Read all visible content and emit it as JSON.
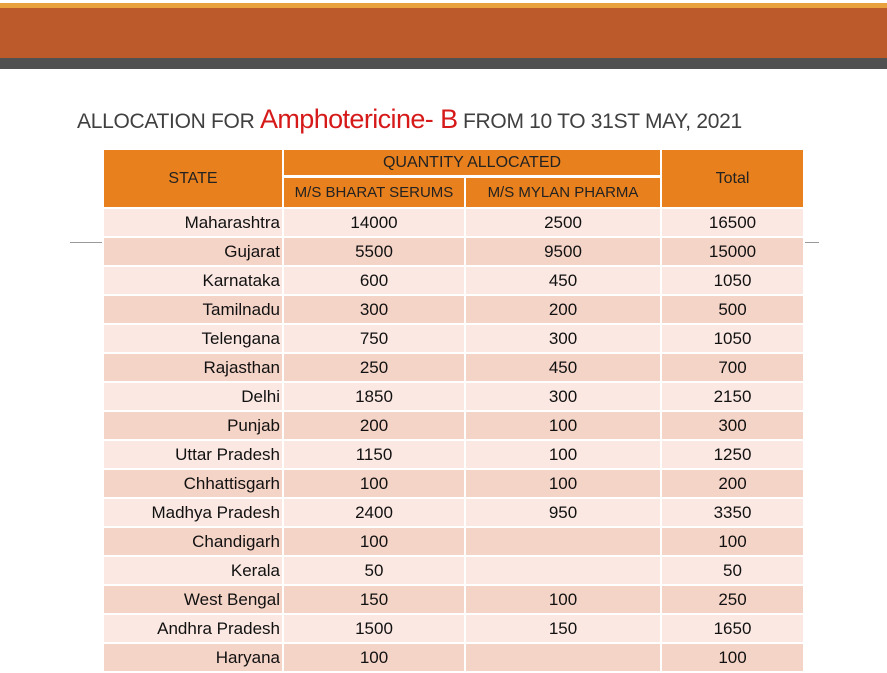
{
  "title": {
    "prefix": "ALLOCATION  FOR ",
    "drug": "Amphotericine- B",
    "suffix": " FROM 10 TO 31ST MAY, 2021"
  },
  "table": {
    "state_header": "STATE",
    "group_header": "QUANTITY ALLOCATED",
    "company1_header": "M/S BHARAT SERUMS",
    "company2_header": "M/S MYLAN PHARMA",
    "total_header": "Total",
    "rows": [
      {
        "state": "Maharashtra",
        "bharat": "14000",
        "mylan": "2500",
        "total": "16500"
      },
      {
        "state": "Gujarat",
        "bharat": "5500",
        "mylan": "9500",
        "total": "15000"
      },
      {
        "state": "Karnataka",
        "bharat": "600",
        "mylan": "450",
        "total": "1050"
      },
      {
        "state": "Tamilnadu",
        "bharat": "300",
        "mylan": "200",
        "total": "500"
      },
      {
        "state": "Telengana",
        "bharat": "750",
        "mylan": "300",
        "total": "1050"
      },
      {
        "state": "Rajasthan",
        "bharat": "250",
        "mylan": "450",
        "total": "700"
      },
      {
        "state": "Delhi",
        "bharat": "1850",
        "mylan": "300",
        "total": "2150"
      },
      {
        "state": "Punjab",
        "bharat": "200",
        "mylan": "100",
        "total": "300"
      },
      {
        "state": "Uttar Pradesh",
        "bharat": "1150",
        "mylan": "100",
        "total": "1250"
      },
      {
        "state": "Chhattisgarh",
        "bharat": "100",
        "mylan": "100",
        "total": "200"
      },
      {
        "state": "Madhya Pradesh",
        "bharat": "2400",
        "mylan": "950",
        "total": "3350"
      },
      {
        "state": "Chandigarh",
        "bharat": "100",
        "mylan": "",
        "total": "100"
      },
      {
        "state": "Kerala",
        "bharat": "50",
        "mylan": "",
        "total": "50"
      },
      {
        "state": "West Bengal",
        "bharat": "150",
        "mylan": "100",
        "total": "250"
      },
      {
        "state": "Andhra Pradesh",
        "bharat": "1500",
        "mylan": "150",
        "total": "1650"
      },
      {
        "state": "Haryana",
        "bharat": "100",
        "mylan": "",
        "total": "100"
      }
    ]
  },
  "colors": {
    "header_bar": "#bd5a2c",
    "header_accent": "#e8a13c",
    "table_header": "#e8801d",
    "row_light": "#fbe8e2",
    "row_dark": "#f5d4c8",
    "drug_name": "#d61a1a"
  }
}
